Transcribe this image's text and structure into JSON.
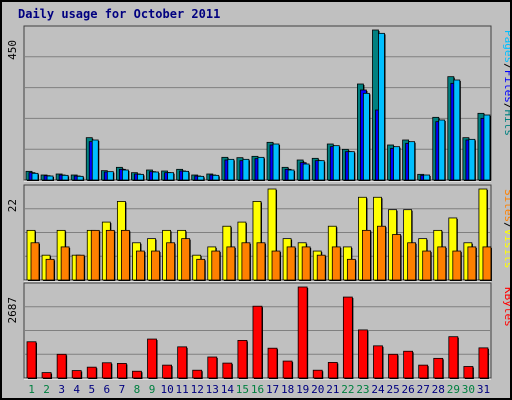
{
  "title": "Daily usage for October 2011",
  "colors": {
    "background": "#c0c0c0",
    "grid": "#808080",
    "hits": "#008080",
    "files": "#0000ff",
    "pages": "#00bfff",
    "visits": "#ffff00",
    "sites": "#ff8000",
    "kbytes": "#ff0000",
    "weekday_label": "#000080",
    "weekend_label": "#008040"
  },
  "chart_data": [
    {
      "type": "bar",
      "panel": "hits-files-pages",
      "max_label": "450",
      "ylim": [
        0,
        450
      ],
      "legend": [
        "Pages",
        "/",
        "Files",
        "/",
        "Hits"
      ],
      "categories": [
        "1",
        "2",
        "3",
        "4",
        "5",
        "6",
        "7",
        "8",
        "9",
        "10",
        "11",
        "12",
        "13",
        "14",
        "15",
        "16",
        "17",
        "18",
        "19",
        "20",
        "21",
        "22",
        "23",
        "24",
        "25",
        "26",
        "27",
        "28",
        "29",
        "30",
        "31"
      ],
      "series": [
        {
          "name": "Hits",
          "values": [
            26,
            15,
            18,
            15,
            127,
            28,
            38,
            22,
            30,
            27,
            32,
            15,
            18,
            68,
            67,
            71,
            113,
            38,
            60,
            65,
            108,
            92,
            288,
            450,
            105,
            120,
            17,
            188,
            310,
            127,
            200
          ]
        },
        {
          "name": "Files",
          "values": [
            22,
            13,
            15,
            12,
            115,
            24,
            32,
            18,
            25,
            22,
            27,
            12,
            15,
            60,
            58,
            64,
            105,
            32,
            52,
            58,
            100,
            85,
            270,
            210,
            95,
            110,
            14,
            175,
            290,
            120,
            185
          ]
        },
        {
          "name": "Pages",
          "values": [
            20,
            12,
            14,
            11,
            120,
            25,
            30,
            17,
            24,
            22,
            26,
            11,
            14,
            62,
            62,
            68,
            108,
            30,
            48,
            58,
            103,
            85,
            260,
            440,
            100,
            115,
            15,
            180,
            300,
            122,
            195
          ]
        }
      ]
    },
    {
      "type": "bar",
      "panel": "visits-sites",
      "max_label": "22",
      "ylim": [
        0,
        22
      ],
      "legend": [
        "Sites",
        "/",
        "Visits"
      ],
      "categories": [
        "1",
        "2",
        "3",
        "4",
        "5",
        "6",
        "7",
        "8",
        "9",
        "10",
        "11",
        "12",
        "13",
        "14",
        "15",
        "16",
        "17",
        "18",
        "19",
        "20",
        "21",
        "22",
        "23",
        "24",
        "25",
        "26",
        "27",
        "28",
        "29",
        "30",
        "31"
      ],
      "series": [
        {
          "name": "Visits",
          "values": [
            12,
            6,
            12,
            6,
            12,
            14,
            19,
            9,
            10,
            12,
            12,
            6,
            8,
            13,
            14,
            19,
            22,
            10,
            9,
            7,
            13,
            8,
            20,
            20,
            17,
            17,
            10,
            12,
            15,
            9,
            22
          ]
        },
        {
          "name": "Sites",
          "values": [
            9,
            5,
            8,
            6,
            12,
            12,
            12,
            7,
            7,
            9,
            10,
            5,
            7,
            8,
            9,
            9,
            7,
            8,
            8,
            6,
            8,
            5,
            12,
            13,
            11,
            9,
            7,
            8,
            7,
            8,
            8
          ]
        }
      ]
    },
    {
      "type": "bar",
      "panel": "kbytes",
      "max_label": "2687",
      "ylim": [
        0,
        2687
      ],
      "legend": [
        "KBytes"
      ],
      "categories": [
        "1",
        "2",
        "3",
        "4",
        "5",
        "6",
        "7",
        "8",
        "9",
        "10",
        "11",
        "12",
        "13",
        "14",
        "15",
        "16",
        "17",
        "18",
        "19",
        "20",
        "21",
        "22",
        "23",
        "24",
        "25",
        "26",
        "27",
        "28",
        "29",
        "30",
        "31"
      ],
      "series": [
        {
          "name": "KBytes",
          "values": [
            1070,
            160,
            700,
            220,
            320,
            450,
            430,
            200,
            1150,
            380,
            920,
            230,
            620,
            440,
            1110,
            2120,
            880,
            500,
            2687,
            230,
            460,
            2390,
            1420,
            950,
            700,
            790,
            380,
            580,
            1220,
            340,
            890
          ]
        }
      ]
    }
  ],
  "weekend_days": [
    1,
    2,
    8,
    9,
    15,
    16,
    22,
    23,
    29,
    30
  ]
}
